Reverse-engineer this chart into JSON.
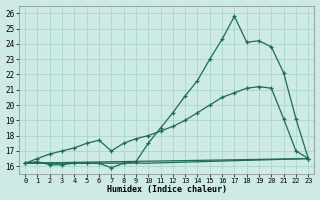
{
  "xlabel": "Humidex (Indice chaleur)",
  "ylabel": "",
  "background_color": "#ceeae5",
  "grid_color": "#a8d5cc",
  "line_color": "#1a6b5a",
  "xlim": [
    -0.5,
    23.5
  ],
  "ylim": [
    15.5,
    26.5
  ],
  "xticks": [
    0,
    1,
    2,
    3,
    4,
    5,
    6,
    7,
    8,
    9,
    10,
    11,
    12,
    13,
    14,
    15,
    16,
    17,
    18,
    19,
    20,
    21,
    22,
    23
  ],
  "yticks": [
    16,
    17,
    18,
    19,
    20,
    21,
    22,
    23,
    24,
    25,
    26
  ],
  "line1_x": [
    0,
    1,
    2,
    3,
    4,
    5,
    6,
    7,
    8,
    9,
    10,
    11,
    12,
    13,
    14,
    15,
    16,
    17,
    18,
    19,
    20,
    21,
    22,
    23
  ],
  "line1_y": [
    16.2,
    16.3,
    16.1,
    16.1,
    16.2,
    16.2,
    16.2,
    15.9,
    16.2,
    16.3,
    17.5,
    18.5,
    19.5,
    20.6,
    21.6,
    23.0,
    24.3,
    25.8,
    24.1,
    24.2,
    23.8,
    22.1,
    19.1,
    16.5
  ],
  "line2_x": [
    0,
    1,
    2,
    3,
    4,
    5,
    6,
    7,
    8,
    9,
    10,
    11,
    12,
    13,
    14,
    15,
    16,
    17,
    18,
    19,
    20,
    21,
    22,
    23
  ],
  "line2_y": [
    16.2,
    16.5,
    16.8,
    17.0,
    17.2,
    17.5,
    17.7,
    17.0,
    17.5,
    17.8,
    18.0,
    18.3,
    18.6,
    19.0,
    19.5,
    20.0,
    20.5,
    20.8,
    21.1,
    21.2,
    21.1,
    19.1,
    17.0,
    16.5
  ],
  "line3_x": [
    0,
    10,
    23
  ],
  "line3_y": [
    16.2,
    16.2,
    16.5
  ],
  "line4_x": [
    0,
    23
  ],
  "line4_y": [
    16.2,
    16.5
  ]
}
